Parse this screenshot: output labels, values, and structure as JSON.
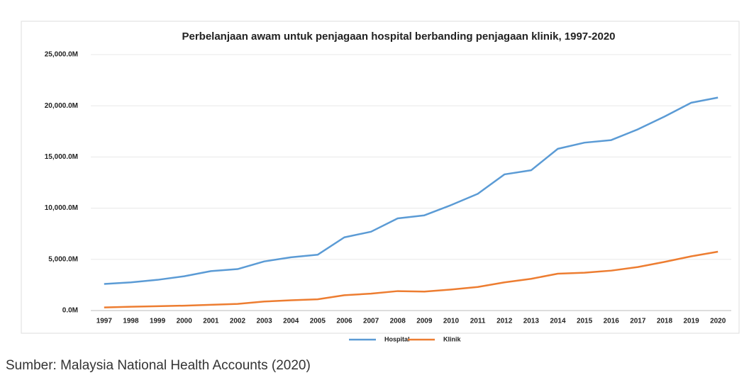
{
  "chart_data": {
    "type": "line",
    "title": "Perbelanjaan awam untuk penjagaan hospital berbanding penjagaan klinik, 1997-2020",
    "categories": [
      "1997",
      "1998",
      "1999",
      "2000",
      "2001",
      "2002",
      "2003",
      "2004",
      "2005",
      "2006",
      "2007",
      "2008",
      "2009",
      "2010",
      "2011",
      "2012",
      "2013",
      "2014",
      "2015",
      "2016",
      "2017",
      "2018",
      "2019",
      "2020"
    ],
    "series": [
      {
        "name": "Hospital",
        "color": "#5b9bd5",
        "values": [
          2600,
          2750,
          3000,
          3350,
          3850,
          4050,
          4800,
          5200,
          5450,
          7150,
          7700,
          9000,
          9300,
          10300,
          11400,
          13300,
          13700,
          15800,
          16400,
          16650,
          17700,
          18950,
          20300,
          20800
        ]
      },
      {
        "name": "Klinik",
        "color": "#ed7d31",
        "values": [
          300,
          370,
          420,
          480,
          560,
          650,
          880,
          1000,
          1100,
          1500,
          1650,
          1900,
          1850,
          2050,
          2300,
          2750,
          3100,
          3600,
          3700,
          3900,
          4250,
          4750,
          5300,
          5750
        ]
      }
    ],
    "ylim": [
      0,
      25000
    ],
    "yticks": [
      {
        "value": 0,
        "label": "0.0M"
      },
      {
        "value": 5000,
        "label": "5,000.0M"
      },
      {
        "value": 10000,
        "label": "10,000.0M"
      },
      {
        "value": 15000,
        "label": "15,000.0M"
      },
      {
        "value": 20000,
        "label": "20,000.0M"
      },
      {
        "value": 25000,
        "label": "25,000.0M"
      }
    ],
    "grid": true,
    "legend": "bottom",
    "source": "Sumber: Malaysia National Health Accounts (2020)"
  }
}
